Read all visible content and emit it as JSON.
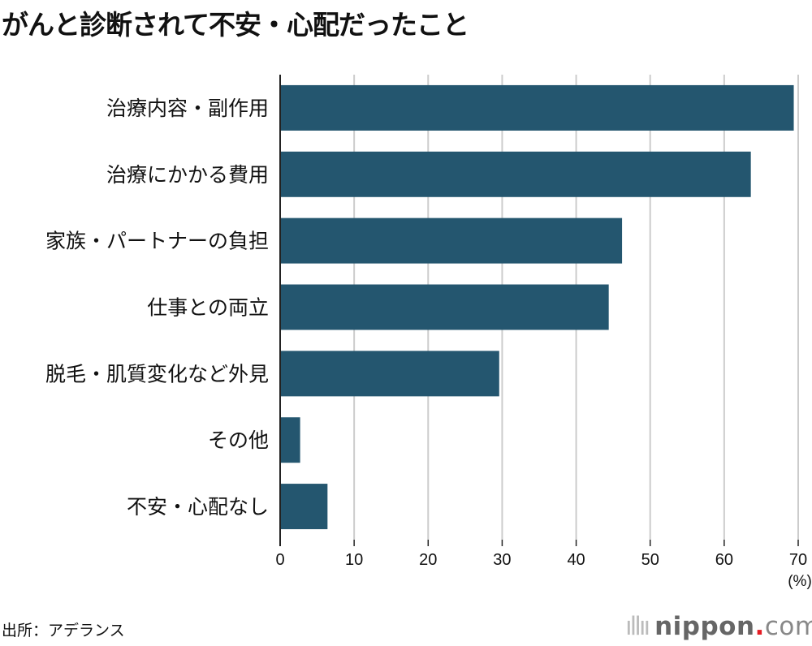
{
  "chart_data": {
    "type": "bar",
    "orientation": "horizontal",
    "title": "がんと診断されて不安・心配だったこと",
    "categories": [
      "治療内容・副作用",
      "治療にかかる費用",
      "家族・パートナーの負担",
      "仕事との両立",
      "脱毛・肌質変化など外見",
      "その他",
      "不安・心配なし"
    ],
    "values": [
      69.4,
      63.6,
      46.2,
      44.4,
      29.6,
      2.7,
      6.4
    ],
    "xlim": [
      0,
      70
    ],
    "xticks": [
      0,
      10,
      20,
      30,
      40,
      50,
      60,
      70
    ],
    "xticklabels": [
      "0",
      "10",
      "20",
      "30",
      "40",
      "50",
      "60",
      "70"
    ],
    "xlabel": "(%)",
    "grid": true,
    "bar_color": "#24566f"
  },
  "source": "出所：アデランス",
  "logo": {
    "name": "nippon",
    "dot": ".",
    "tld": "com"
  }
}
